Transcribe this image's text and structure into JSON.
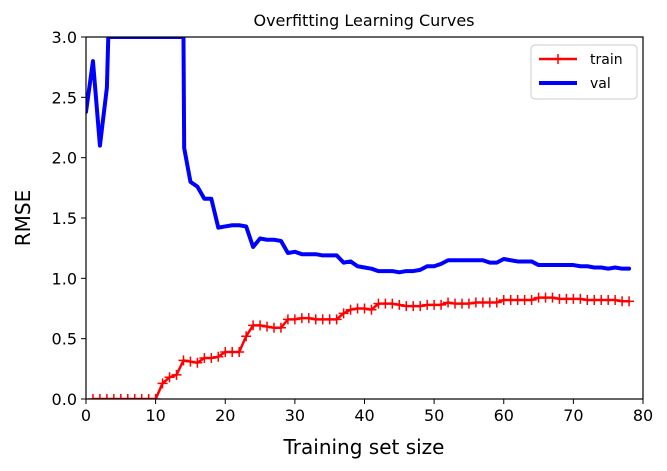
{
  "chart_data": {
    "type": "line",
    "title": "Overfitting Learning Curves",
    "xlabel": "Training set size",
    "ylabel": "RMSE",
    "xlim": [
      0,
      80
    ],
    "ylim": [
      0,
      3
    ],
    "xticks": [
      0,
      10,
      20,
      30,
      40,
      50,
      60,
      70,
      80
    ],
    "yticks": [
      0.0,
      0.5,
      1.0,
      1.5,
      2.0,
      2.5,
      3.0
    ],
    "xtick_labels": [
      "0",
      "10",
      "20",
      "30",
      "40",
      "50",
      "60",
      "70",
      "80"
    ],
    "ytick_labels": [
      "0.0",
      "0.5",
      "1.0",
      "1.5",
      "2.0",
      "2.5",
      "3.0"
    ],
    "grid": false,
    "legend_position": "top-right",
    "series": [
      {
        "name": "train",
        "color": "#ff0000",
        "marker": "+",
        "x": [
          1,
          2,
          3,
          4,
          5,
          6,
          7,
          8,
          9,
          10,
          11,
          12,
          13,
          14,
          15,
          16,
          17,
          18,
          19,
          20,
          21,
          22,
          23,
          24,
          25,
          26,
          27,
          28,
          29,
          30,
          31,
          32,
          33,
          34,
          35,
          36,
          37,
          38,
          39,
          40,
          41,
          42,
          43,
          44,
          45,
          46,
          47,
          48,
          49,
          50,
          51,
          52,
          53,
          54,
          55,
          56,
          57,
          58,
          59,
          60,
          61,
          62,
          63,
          64,
          65,
          66,
          67,
          68,
          69,
          70,
          71,
          72,
          73,
          74,
          75,
          76,
          77,
          78
        ],
        "y": [
          0,
          0,
          0,
          0,
          0,
          0,
          0,
          0,
          0,
          0,
          0.13,
          0.18,
          0.2,
          0.32,
          0.31,
          0.3,
          0.34,
          0.34,
          0.35,
          0.39,
          0.39,
          0.39,
          0.52,
          0.61,
          0.61,
          0.6,
          0.59,
          0.59,
          0.66,
          0.66,
          0.67,
          0.67,
          0.66,
          0.66,
          0.66,
          0.66,
          0.71,
          0.74,
          0.75,
          0.75,
          0.74,
          0.79,
          0.79,
          0.79,
          0.78,
          0.77,
          0.77,
          0.77,
          0.78,
          0.78,
          0.78,
          0.8,
          0.79,
          0.79,
          0.79,
          0.8,
          0.8,
          0.8,
          0.8,
          0.82,
          0.82,
          0.82,
          0.82,
          0.82,
          0.84,
          0.84,
          0.84,
          0.83,
          0.83,
          0.83,
          0.83,
          0.82,
          0.82,
          0.82,
          0.82,
          0.82,
          0.81,
          0.81
        ]
      },
      {
        "name": "val",
        "color": "#0000ff",
        "marker": "",
        "x": [
          0,
          1,
          2,
          3,
          3.2,
          14,
          14.1,
          15,
          16,
          17,
          18,
          19,
          20,
          21,
          22,
          23,
          24,
          25,
          26,
          27,
          28,
          29,
          30,
          31,
          32,
          33,
          34,
          35,
          36,
          37,
          38,
          39,
          40,
          41,
          42,
          43,
          44,
          45,
          46,
          47,
          48,
          49,
          50,
          51,
          52,
          53,
          54,
          55,
          56,
          57,
          58,
          59,
          60,
          61,
          62,
          63,
          64,
          65,
          66,
          67,
          68,
          69,
          70,
          71,
          72,
          73,
          74,
          75,
          76,
          77,
          78
        ],
        "y": [
          2.38,
          2.8,
          2.1,
          2.58,
          3.0,
          3.0,
          2.08,
          1.8,
          1.76,
          1.66,
          1.66,
          1.42,
          1.43,
          1.44,
          1.44,
          1.43,
          1.26,
          1.33,
          1.32,
          1.32,
          1.31,
          1.21,
          1.22,
          1.2,
          1.2,
          1.2,
          1.19,
          1.19,
          1.19,
          1.13,
          1.14,
          1.1,
          1.09,
          1.08,
          1.06,
          1.06,
          1.06,
          1.05,
          1.06,
          1.06,
          1.07,
          1.1,
          1.1,
          1.12,
          1.15,
          1.15,
          1.15,
          1.15,
          1.15,
          1.15,
          1.13,
          1.13,
          1.16,
          1.15,
          1.14,
          1.14,
          1.14,
          1.11,
          1.11,
          1.11,
          1.11,
          1.11,
          1.11,
          1.1,
          1.1,
          1.09,
          1.09,
          1.08,
          1.09,
          1.08,
          1.08
        ]
      }
    ]
  }
}
